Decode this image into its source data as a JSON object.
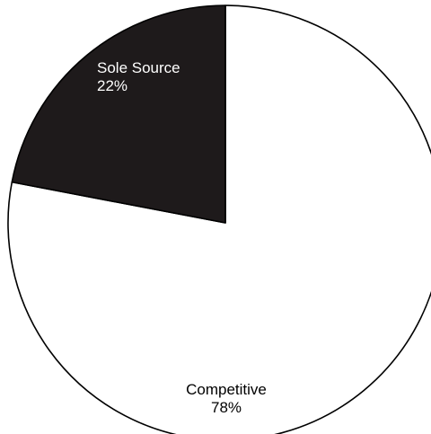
{
  "chart_data": {
    "type": "pie",
    "slices": [
      {
        "label": "Competitive",
        "value": 78,
        "value_label": "78%",
        "color": "#ffffff",
        "text_color": "#000000"
      },
      {
        "label": "Sole Source",
        "value": 22,
        "value_label": "22%",
        "color": "#1e1a1b",
        "text_color": "#ffffff"
      }
    ],
    "start_angle_deg": 0,
    "direction": "clockwise",
    "outline_color": "#000000",
    "legend": "none"
  }
}
